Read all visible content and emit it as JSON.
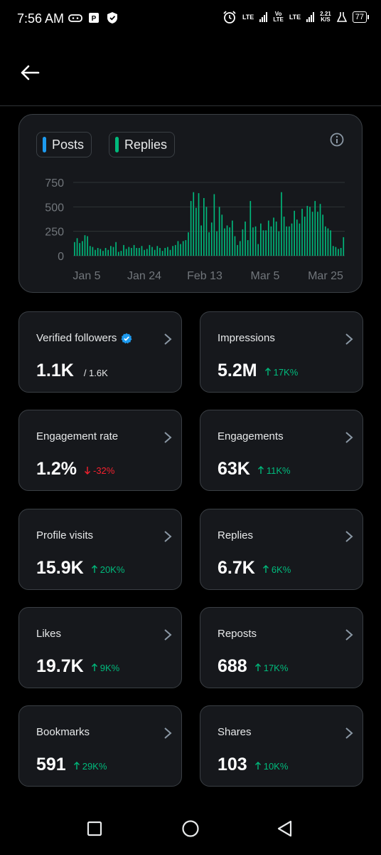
{
  "status_bar": {
    "time": "7:56 AM",
    "net1": "LTE",
    "net2_top": "Vo",
    "net2_bottom": "LTE",
    "net3": "LTE",
    "speed_top": "2.21",
    "speed_bottom": "K/S",
    "battery": "77"
  },
  "header": {
    "back_icon": "arrow-left-icon"
  },
  "chart": {
    "legend": [
      {
        "label": "Posts",
        "color": "#1d9bf0"
      },
      {
        "label": "Replies",
        "color": "#00ba7c"
      }
    ],
    "info_icon": "info-icon"
  },
  "chart_data": {
    "type": "bar",
    "x_tick_labels": [
      "Jan 5",
      "Jan 24",
      "Feb 13",
      "Mar 5",
      "Mar 25"
    ],
    "y_tick_labels": [
      "0",
      "250",
      "500",
      "750"
    ],
    "ylim": [
      0,
      750
    ],
    "grid": true,
    "legend_position": "top-left",
    "series": [
      {
        "name": "Replies",
        "color": "#00ba7c",
        "values": [
          140,
          180,
          130,
          150,
          210,
          200,
          100,
          90,
          60,
          80,
          70,
          50,
          80,
          60,
          100,
          90,
          140,
          40,
          50,
          110,
          70,
          90,
          80,
          110,
          80,
          80,
          100,
          60,
          70,
          110,
          90,
          60,
          100,
          80,
          50,
          80,
          90,
          60,
          100,
          110,
          150,
          120,
          150,
          160,
          240,
          560,
          650,
          490,
          640,
          310,
          590,
          500,
          240,
          340,
          630,
          250,
          500,
          420,
          280,
          310,
          290,
          360,
          200,
          110,
          150,
          270,
          350,
          160,
          560,
          290,
          300,
          120,
          330,
          260,
          260,
          360,
          300,
          390,
          350,
          250,
          650,
          400,
          300,
          300,
          330,
          460,
          370,
          330,
          480,
          400,
          510,
          500,
          450,
          560,
          450,
          530,
          420,
          300,
          280,
          260,
          100,
          90,
          70,
          80,
          190
        ],
        "series_note": "daily replies, read off chart"
      }
    ]
  },
  "cards": [
    {
      "title": "Verified followers",
      "value": "1.1K",
      "sub": "/ 1.6K",
      "verified_badge": true
    },
    {
      "title": "Impressions",
      "value": "5.2M",
      "delta": "17K%",
      "direction": "up"
    },
    {
      "title": "Engagement rate",
      "value": "1.2%",
      "delta": "-32%",
      "direction": "down"
    },
    {
      "title": "Engagements",
      "value": "63K",
      "delta": "11K%",
      "direction": "up"
    },
    {
      "title": "Profile visits",
      "value": "15.9K",
      "delta": "20K%",
      "direction": "up"
    },
    {
      "title": "Replies",
      "value": "6.7K",
      "delta": "6K%",
      "direction": "up"
    },
    {
      "title": "Likes",
      "value": "19.7K",
      "delta": "9K%",
      "direction": "up"
    },
    {
      "title": "Reposts",
      "value": "688",
      "delta": "17K%",
      "direction": "up"
    },
    {
      "title": "Bookmarks",
      "value": "591",
      "delta": "29K%",
      "direction": "up"
    },
    {
      "title": "Shares",
      "value": "103",
      "delta": "10K%",
      "direction": "up"
    }
  ],
  "nav": {
    "recents_icon": "square-icon",
    "home_icon": "circle-icon",
    "back_icon": "triangle-back-icon"
  }
}
